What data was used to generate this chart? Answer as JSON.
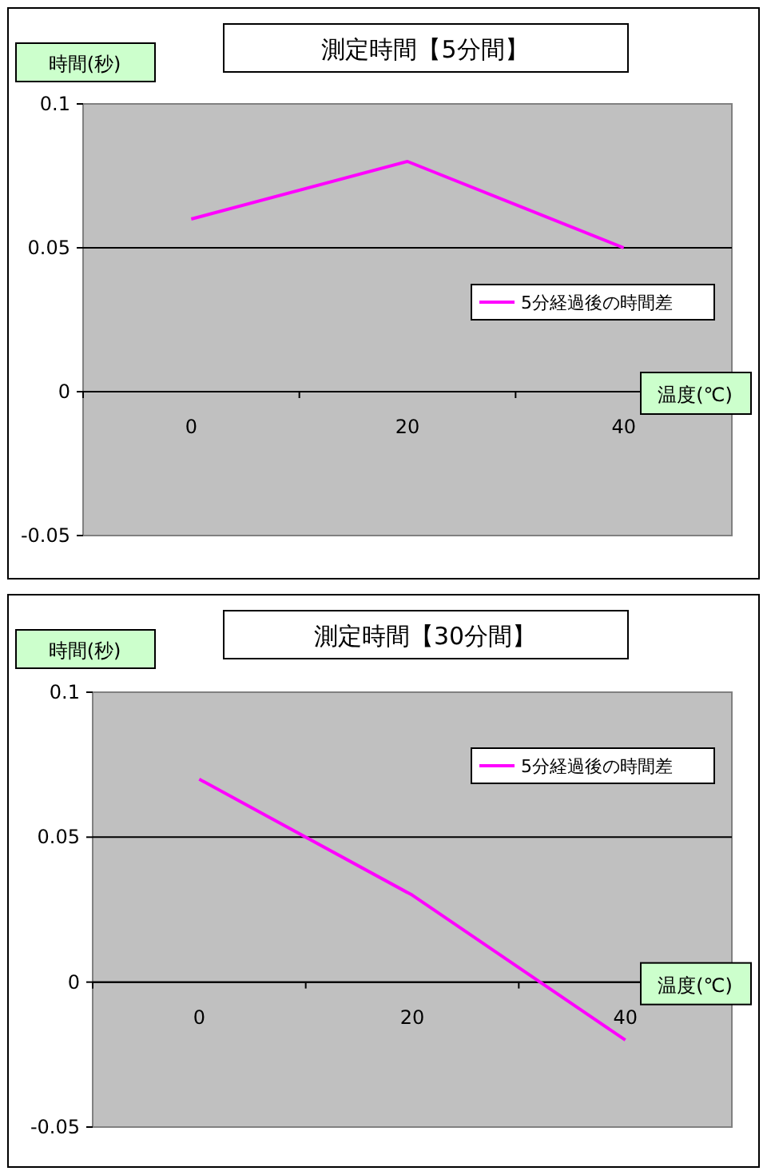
{
  "chart_data": [
    {
      "type": "line",
      "title": "測定時間【5分間】",
      "ylabel": "時間(秒)",
      "xlabel": "温度(℃)",
      "categories": [
        "0",
        "20",
        "40"
      ],
      "series": [
        {
          "name": "5分経過後の時間差",
          "color": "#ff00ff",
          "values": [
            0.06,
            0.08,
            0.05
          ]
        }
      ],
      "ylim": [
        -0.05,
        0.1
      ],
      "yticks": [
        -0.05,
        0,
        0.05,
        0.1
      ],
      "grid": "y",
      "legend": "right",
      "marker": "none"
    },
    {
      "type": "line",
      "title": "測定時間【30分間】",
      "ylabel": "時間(秒)",
      "xlabel": "温度(℃)",
      "categories": [
        "0",
        "20",
        "40"
      ],
      "series": [
        {
          "name": "5分経過後の時間差",
          "color": "#ff00ff",
          "values": [
            0.07,
            0.03,
            -0.02
          ]
        }
      ],
      "ylim": [
        -0.05,
        0.1
      ],
      "yticks": [
        -0.05,
        0,
        0.05,
        0.1
      ],
      "grid": "y",
      "legend": "top right",
      "marker": "none"
    }
  ]
}
